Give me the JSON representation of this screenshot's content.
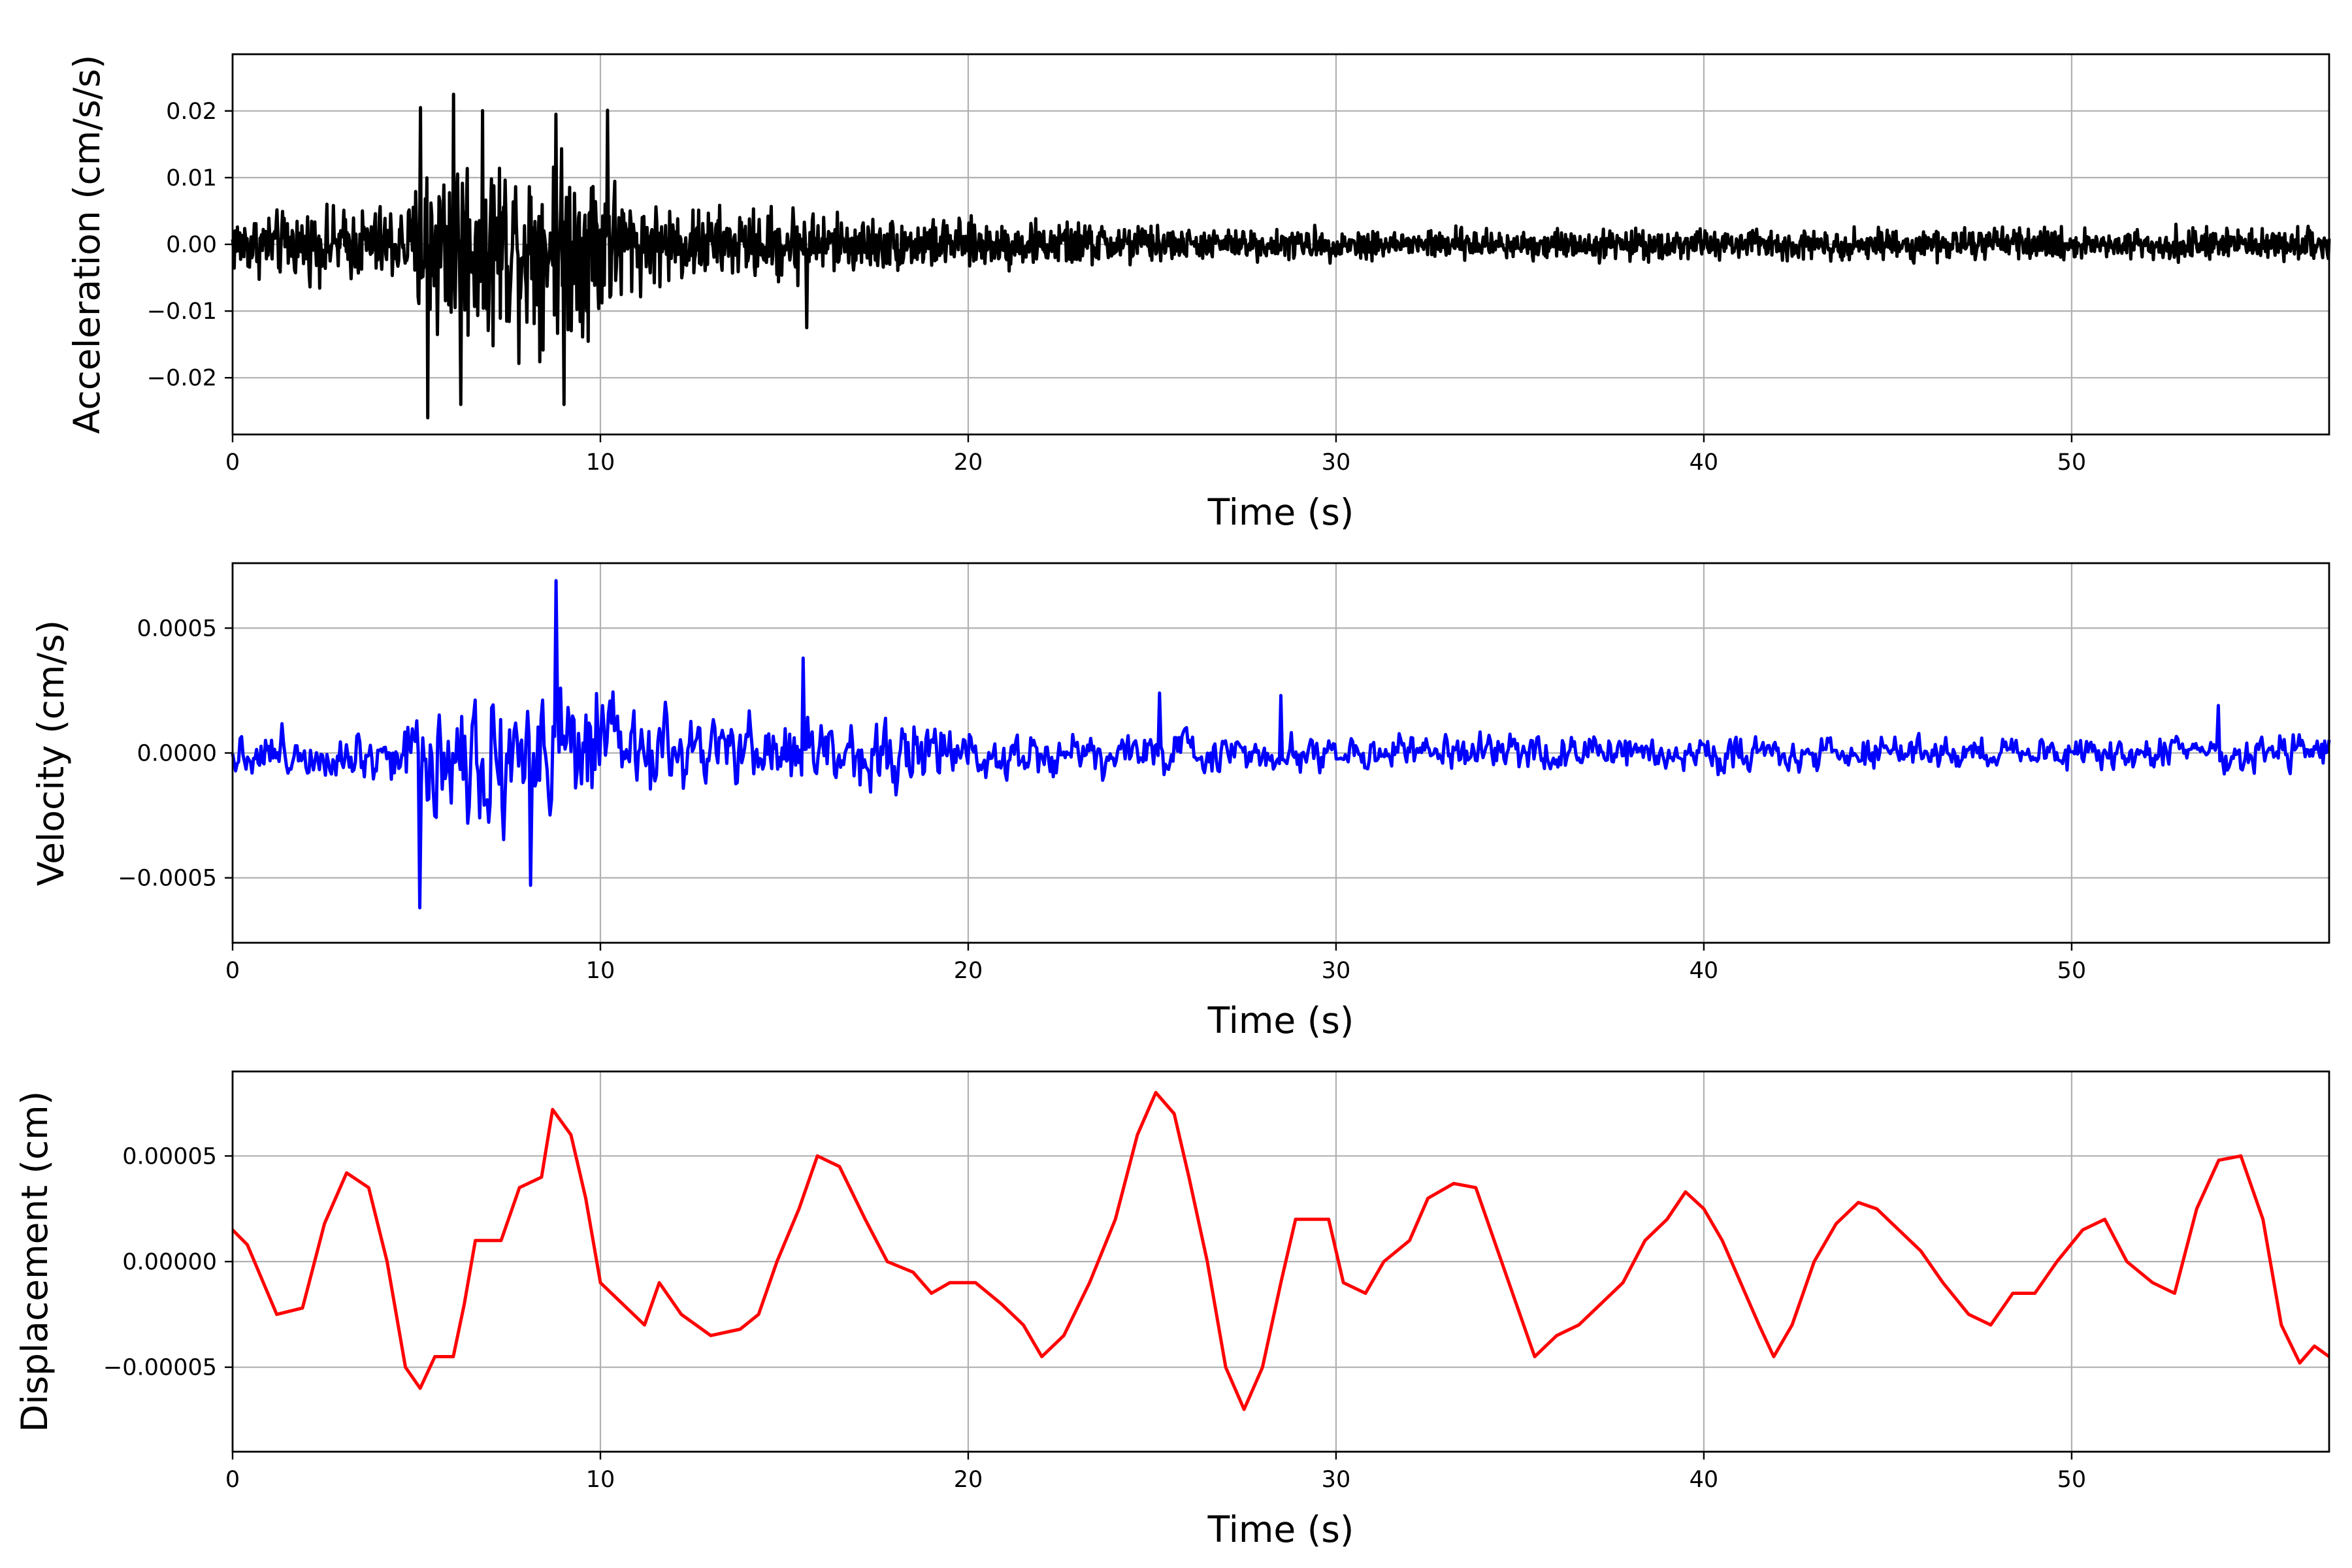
{
  "chart_data": [
    {
      "type": "line",
      "xlabel": "Time (s)",
      "ylabel": "Acceleration (cm/s/s)",
      "xlim": [
        0,
        57
      ],
      "ylim": [
        -0.0285,
        0.0285
      ],
      "xticks": [
        0,
        10,
        20,
        30,
        40,
        50
      ],
      "xtick_labels": [
        "0",
        "10",
        "20",
        "30",
        "40",
        "50"
      ],
      "yticks": [
        -0.02,
        -0.01,
        0.0,
        0.01,
        0.02
      ],
      "ytick_labels": [
        "−0.02",
        "−0.01",
        "0.00",
        "0.01",
        "0.02"
      ],
      "grid": true,
      "color": "#000000",
      "envelope": [
        [
          0,
          0.0065
        ],
        [
          3,
          0.0075
        ],
        [
          4.9,
          0.009
        ],
        [
          5.1,
          0.02
        ],
        [
          6,
          0.021
        ],
        [
          8,
          0.02
        ],
        [
          10,
          0.019
        ],
        [
          11,
          0.009
        ],
        [
          14,
          0.007
        ],
        [
          15.5,
          0.0085
        ],
        [
          16.5,
          0.006
        ],
        [
          20,
          0.005
        ],
        [
          24.5,
          0.0045
        ],
        [
          26,
          0.0032
        ],
        [
          57,
          0.0033
        ]
      ],
      "peaks": [
        [
          5.1,
          0.0205
        ],
        [
          5.3,
          -0.026
        ],
        [
          6.0,
          0.0225
        ],
        [
          6.2,
          -0.024
        ],
        [
          8.8,
          0.0195
        ],
        [
          9.0,
          -0.024
        ],
        [
          10.2,
          0.0201
        ],
        [
          15.6,
          -0.0125
        ]
      ]
    },
    {
      "type": "line",
      "xlabel": "Time (s)",
      "ylabel": "Velocity (cm/s)",
      "xlim": [
        0,
        57
      ],
      "ylim": [
        -0.00076,
        0.00076
      ],
      "xticks": [
        0,
        10,
        20,
        30,
        40,
        50
      ],
      "xtick_labels": [
        "0",
        "10",
        "20",
        "30",
        "40",
        "50"
      ],
      "yticks": [
        -0.0005,
        0.0,
        0.0005
      ],
      "ytick_labels": [
        "−0.0005",
        "0.0000",
        "0.0005"
      ],
      "grid": true,
      "color": "#0000ff",
      "envelope": [
        [
          0,
          0.00014
        ],
        [
          4,
          0.00018
        ],
        [
          4.8,
          0.0003
        ],
        [
          5.5,
          0.00045
        ],
        [
          8.5,
          0.00052
        ],
        [
          10.5,
          0.00032
        ],
        [
          12,
          0.00022
        ],
        [
          15.5,
          0.00026
        ],
        [
          20,
          0.00018
        ],
        [
          25,
          0.00014
        ],
        [
          30,
          0.00011
        ],
        [
          57,
          0.00012
        ]
      ],
      "peaks": [
        [
          5.1,
          -0.00062
        ],
        [
          8.8,
          0.00069
        ],
        [
          8.1,
          -0.00053
        ],
        [
          15.5,
          0.00038
        ],
        [
          25.2,
          0.00024
        ],
        [
          28.5,
          0.00023
        ],
        [
          54,
          0.00019
        ]
      ]
    },
    {
      "type": "line",
      "xlabel": "Time (s)",
      "ylabel": "Displacement (cm)",
      "xlim": [
        0,
        57
      ],
      "ylim": [
        -9e-05,
        9e-05
      ],
      "xticks": [
        0,
        10,
        20,
        30,
        40,
        50
      ],
      "xtick_labels": [
        "0",
        "10",
        "20",
        "30",
        "40",
        "50"
      ],
      "yticks": [
        -5e-05,
        0.0,
        5e-05
      ],
      "ytick_labels": [
        "−0.00005",
        "0.00000",
        "0.00005"
      ],
      "grid": true,
      "color": "#ff0000",
      "points": [
        [
          0,
          1.5e-05
        ],
        [
          0.4,
          8e-06
        ],
        [
          1.2,
          -2.5e-05
        ],
        [
          1.9,
          -2.2e-05
        ],
        [
          2.5,
          1.8e-05
        ],
        [
          3.1,
          4.2e-05
        ],
        [
          3.7,
          3.5e-05
        ],
        [
          4.2,
          0.0
        ],
        [
          4.7,
          -5e-05
        ],
        [
          5.1,
          -6e-05
        ],
        [
          5.5,
          -4.5e-05
        ],
        [
          6.0,
          -4.5e-05
        ],
        [
          6.3,
          -2e-05
        ],
        [
          6.6,
          1e-05
        ],
        [
          7.3,
          1e-05
        ],
        [
          7.8,
          3.5e-05
        ],
        [
          8.4,
          4e-05
        ],
        [
          8.7,
          7.2e-05
        ],
        [
          9.2,
          6e-05
        ],
        [
          9.6,
          3e-05
        ],
        [
          10.0,
          -1e-05
        ],
        [
          10.6,
          -2e-05
        ],
        [
          11.2,
          -3e-05
        ],
        [
          11.6,
          -1e-05
        ],
        [
          12.2,
          -2.5e-05
        ],
        [
          13.0,
          -3.5e-05
        ],
        [
          13.8,
          -3.2e-05
        ],
        [
          14.3,
          -2.5e-05
        ],
        [
          14.8,
          0.0
        ],
        [
          15.4,
          2.5e-05
        ],
        [
          15.9,
          5e-05
        ],
        [
          16.5,
          4.5e-05
        ],
        [
          17.2,
          2e-05
        ],
        [
          17.8,
          0.0
        ],
        [
          18.5,
          -5e-06
        ],
        [
          19.0,
          -1.5e-05
        ],
        [
          19.5,
          -1e-05
        ],
        [
          20.2,
          -1e-05
        ],
        [
          20.9,
          -2e-05
        ],
        [
          21.5,
          -3e-05
        ],
        [
          22.0,
          -4.5e-05
        ],
        [
          22.6,
          -3.5e-05
        ],
        [
          23.3,
          -1e-05
        ],
        [
          24.0,
          2e-05
        ],
        [
          24.6,
          6e-05
        ],
        [
          25.1,
          8e-05
        ],
        [
          25.6,
          7e-05
        ],
        [
          26.0,
          4e-05
        ],
        [
          26.5,
          0.0
        ],
        [
          27.0,
          -5e-05
        ],
        [
          27.5,
          -7e-05
        ],
        [
          28.0,
          -5e-05
        ],
        [
          28.5,
          -1e-05
        ],
        [
          28.9,
          2e-05
        ],
        [
          29.3,
          2e-05
        ],
        [
          29.8,
          2e-05
        ],
        [
          30.2,
          -1e-05
        ],
        [
          30.8,
          -1.5e-05
        ],
        [
          31.3,
          0.0
        ],
        [
          32.0,
          1e-05
        ],
        [
          32.5,
          3e-05
        ],
        [
          33.2,
          3.7e-05
        ],
        [
          33.8,
          3.5e-05
        ],
        [
          34.3,
          1e-05
        ],
        [
          34.9,
          -2e-05
        ],
        [
          35.4,
          -4.5e-05
        ],
        [
          36.0,
          -3.5e-05
        ],
        [
          36.6,
          -3e-05
        ],
        [
          37.2,
          -2e-05
        ],
        [
          37.8,
          -1e-05
        ],
        [
          38.4,
          1e-05
        ],
        [
          39.0,
          2e-05
        ],
        [
          39.5,
          3.3e-05
        ],
        [
          40.0,
          2.5e-05
        ],
        [
          40.5,
          1e-05
        ],
        [
          41.0,
          -1e-05
        ],
        [
          41.5,
          -3e-05
        ],
        [
          41.9,
          -4.5e-05
        ],
        [
          42.4,
          -3e-05
        ],
        [
          43.0,
          0.0
        ],
        [
          43.6,
          1.8e-05
        ],
        [
          44.2,
          2.8e-05
        ],
        [
          44.7,
          2.5e-05
        ],
        [
          45.3,
          1.5e-05
        ],
        [
          45.9,
          5e-06
        ],
        [
          46.5,
          -1e-05
        ],
        [
          47.2,
          -2.5e-05
        ],
        [
          47.8,
          -3e-05
        ],
        [
          48.4,
          -1.5e-05
        ],
        [
          49.0,
          -1.5e-05
        ],
        [
          49.6,
          0.0
        ],
        [
          50.3,
          1.5e-05
        ],
        [
          50.9,
          2e-05
        ],
        [
          51.5,
          0.0
        ],
        [
          52.2,
          -1e-05
        ],
        [
          52.8,
          -1.5e-05
        ],
        [
          53.4,
          2.5e-05
        ],
        [
          54.0,
          4.8e-05
        ],
        [
          54.6,
          5e-05
        ],
        [
          55.2,
          2e-05
        ],
        [
          55.7,
          -3e-05
        ],
        [
          56.2,
          -4.8e-05
        ],
        [
          56.6,
          -4e-05
        ],
        [
          57.0,
          -4.5e-05
        ]
      ]
    }
  ]
}
